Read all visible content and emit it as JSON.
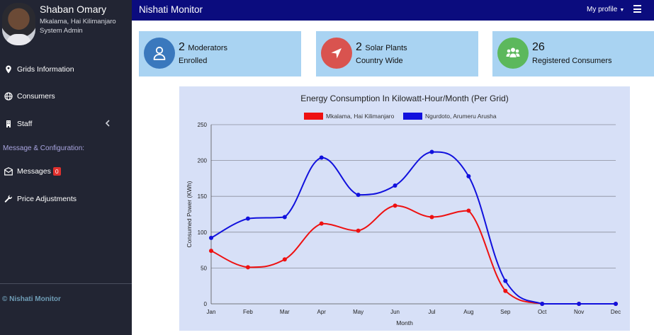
{
  "user": {
    "name": "Shaban Omary",
    "location": "Mkalama, Hai Kilimanjaro",
    "role": "System Admin"
  },
  "sidebar": {
    "items": [
      {
        "label": "Grids Information",
        "icon": "map-marker-icon"
      },
      {
        "label": "Consumers",
        "icon": "globe-icon"
      },
      {
        "label": "Staff",
        "icon": "building-icon"
      },
      {
        "label": "Messages",
        "icon": "envelope-icon",
        "badge": "0"
      },
      {
        "label": "Price Adjustments",
        "icon": "wrench-icon"
      }
    ],
    "section_label": "Message & Configuration:",
    "footer": "© Nishati Monitor"
  },
  "header": {
    "title": "Nishati Monitor",
    "profile_label": "My profile"
  },
  "cards": [
    {
      "value": "2",
      "suffix": "Moderators",
      "label": "Enrolled",
      "icon": "user-icon",
      "color": "#3a78bd"
    },
    {
      "value": "2",
      "suffix": "Solar Plants",
      "label": "Country Wide",
      "icon": "location-arrow-icon",
      "color": "#d9534f"
    },
    {
      "value": "26",
      "suffix": "",
      "label": "Registered Consumers",
      "icon": "users-icon",
      "color": "#5cb85c"
    }
  ],
  "chart_data": {
    "type": "line",
    "title": "Energy Consumption In Kilowatt-Hour/Month (Per Grid)",
    "xlabel": "Month",
    "ylabel": "Consumed Power (KWh)",
    "ylim": [
      0,
      250
    ],
    "yticks": [
      0,
      50,
      100,
      150,
      200,
      250
    ],
    "categories": [
      "Jan",
      "Feb",
      "Mar",
      "Apr",
      "May",
      "Jun",
      "Jul",
      "Aug",
      "Sep",
      "Oct",
      "Nov",
      "Dec"
    ],
    "legend_position": "top-center",
    "grid": true,
    "series": [
      {
        "name": "Mkalama, Hai Kilimanjaro",
        "color": "#ee1111",
        "values": [
          74,
          51,
          62,
          112,
          102,
          137,
          121,
          130,
          18,
          0,
          0,
          0
        ]
      },
      {
        "name": "Ngurdoto, Arumeru Arusha",
        "color": "#1111dd",
        "values": [
          92,
          119,
          121,
          204,
          152,
          165,
          212,
          178,
          32,
          0,
          0,
          0
        ]
      }
    ]
  }
}
